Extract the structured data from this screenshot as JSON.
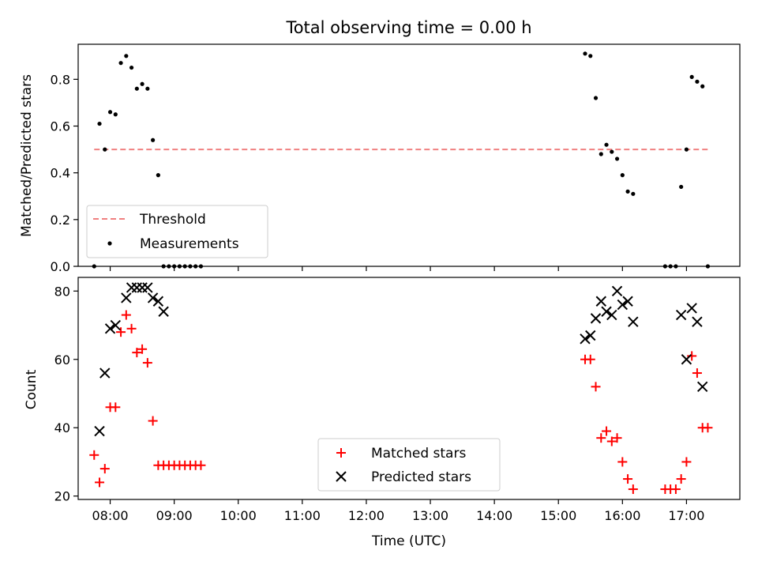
{
  "chart_data": [
    {
      "type": "scatter",
      "title": "Total observing time = 0.00 h",
      "xlabel": "",
      "ylabel": "Matched/Predicted stars",
      "xlim": [
        "07:30",
        "17:50"
      ],
      "ylim": [
        0,
        0.95
      ],
      "yticks": [
        0.0,
        0.2,
        0.4,
        0.6,
        0.8
      ],
      "ytick_labels": [
        "0.0",
        "0.2",
        "0.4",
        "0.6",
        "0.8"
      ],
      "legend_position": "lower-left",
      "series": [
        {
          "name": "Threshold",
          "style": "dashed-line",
          "color": "#f08080",
          "x": [
            "07:45",
            "17:20"
          ],
          "y": [
            0.5,
            0.5
          ]
        },
        {
          "name": "Measurements",
          "style": "dot",
          "color": "#000000",
          "x": [
            "07:45",
            "07:50",
            "07:55",
            "08:00",
            "08:05",
            "08:10",
            "08:15",
            "08:20",
            "08:25",
            "08:30",
            "08:35",
            "08:40",
            "08:45",
            "08:50",
            "08:55",
            "09:00",
            "09:05",
            "09:10",
            "09:15",
            "09:20",
            "09:25",
            "15:25",
            "15:30",
            "15:35",
            "15:40",
            "15:45",
            "15:50",
            "15:55",
            "16:00",
            "16:05",
            "16:10",
            "16:40",
            "16:45",
            "16:50",
            "16:55",
            "17:00",
            "17:05",
            "17:10",
            "17:15",
            "17:20"
          ],
          "y": [
            0.0,
            0.61,
            0.5,
            0.66,
            0.65,
            0.87,
            0.9,
            0.85,
            0.76,
            0.78,
            0.76,
            0.54,
            0.39,
            0.0,
            0.0,
            0.0,
            0.0,
            0.0,
            0.0,
            0.0,
            0.0,
            0.91,
            0.9,
            0.72,
            0.48,
            0.52,
            0.49,
            0.46,
            0.39,
            0.32,
            0.31,
            0.0,
            0.0,
            0.0,
            0.34,
            0.5,
            0.81,
            0.79,
            0.77,
            0.0
          ]
        }
      ]
    },
    {
      "type": "scatter",
      "title": "",
      "xlabel": "Time (UTC)",
      "ylabel": "Count",
      "xlim": [
        "07:30",
        "17:50"
      ],
      "ylim": [
        19,
        84
      ],
      "yticks": [
        20,
        40,
        60,
        80
      ],
      "ytick_labels": [
        "20",
        "40",
        "60",
        "80"
      ],
      "xticks": [
        "08:00",
        "09:00",
        "10:00",
        "11:00",
        "12:00",
        "13:00",
        "14:00",
        "15:00",
        "16:00",
        "17:00"
      ],
      "legend_position": "lower-center",
      "series": [
        {
          "name": "Matched stars",
          "marker": "plus",
          "color": "#ff0000",
          "x": [
            "07:45",
            "07:50",
            "07:55",
            "08:00",
            "08:05",
            "08:10",
            "08:15",
            "08:20",
            "08:25",
            "08:30",
            "08:35",
            "08:40",
            "08:45",
            "08:50",
            "08:55",
            "09:00",
            "09:05",
            "09:10",
            "09:15",
            "09:20",
            "09:25",
            "15:25",
            "15:30",
            "15:35",
            "15:40",
            "15:45",
            "15:50",
            "15:55",
            "16:00",
            "16:05",
            "16:10",
            "16:40",
            "16:45",
            "16:50",
            "16:55",
            "17:00",
            "17:05",
            "17:10",
            "17:15",
            "17:20"
          ],
          "y": [
            32,
            24,
            28,
            46,
            46,
            68,
            73,
            69,
            62,
            63,
            59,
            42,
            29,
            29,
            29,
            29,
            29,
            29,
            29,
            29,
            29,
            60,
            60,
            52,
            37,
            39,
            36,
            37,
            30,
            25,
            22,
            22,
            22,
            22,
            25,
            30,
            61,
            56,
            40,
            40
          ]
        },
        {
          "name": "Predicted stars",
          "marker": "x",
          "color": "#000000",
          "x": [
            "07:50",
            "07:55",
            "08:00",
            "08:05",
            "08:15",
            "08:20",
            "08:25",
            "08:30",
            "08:35",
            "08:40",
            "08:45",
            "08:50",
            "15:25",
            "15:30",
            "15:35",
            "15:40",
            "15:45",
            "15:50",
            "15:55",
            "16:00",
            "16:05",
            "16:10",
            "16:55",
            "17:00",
            "17:05",
            "17:10",
            "17:15"
          ],
          "y": [
            39,
            56,
            69,
            70,
            78,
            81,
            81,
            81,
            81,
            78,
            77,
            74,
            66,
            67,
            72,
            77,
            74,
            73,
            80,
            76,
            77,
            71,
            73,
            60,
            75,
            71,
            52
          ]
        }
      ]
    }
  ]
}
